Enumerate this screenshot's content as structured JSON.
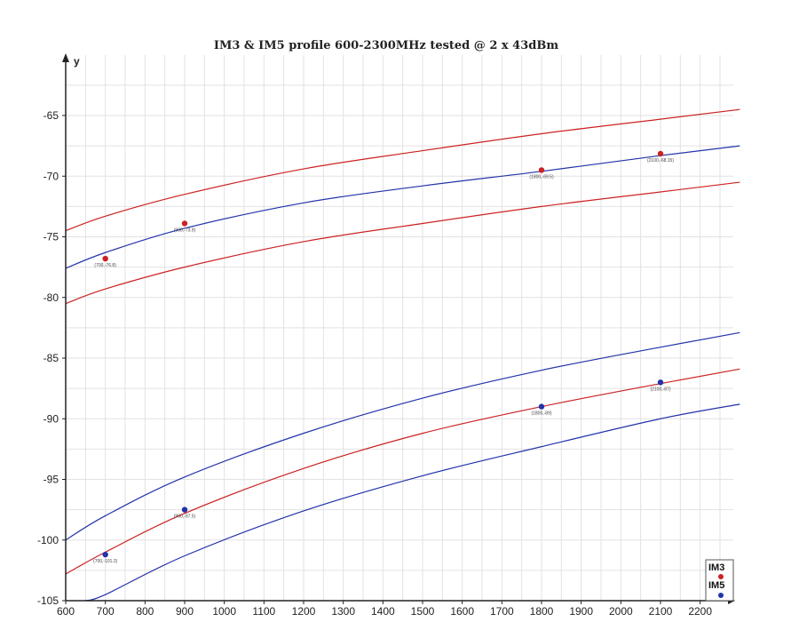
{
  "chart_data": {
    "type": "scatter",
    "title": "IM3 & IM5 profile 600-2300MHz tested @ 2 x 43dBm",
    "ylabel": "y",
    "xlim": [
      600,
      2300
    ],
    "ylim": [
      -105,
      -60
    ],
    "x_ticks": [
      600,
      700,
      800,
      900,
      1000,
      1100,
      1200,
      1300,
      1400,
      1500,
      1600,
      1700,
      1800,
      1900,
      2000,
      2100,
      2200
    ],
    "y_ticks": [
      -65,
      -70,
      -75,
      -80,
      -85,
      -90,
      -95,
      -100,
      -105
    ],
    "grid": true,
    "legend_position": "bottom-right",
    "series": [
      {
        "name": "IM3",
        "color": "#cc2222",
        "points": [
          {
            "x": 700,
            "y": -76.8,
            "label": "(700,-76.8)"
          },
          {
            "x": 900,
            "y": -73.9,
            "label": "(900,-73.9)"
          },
          {
            "x": 1800,
            "y": -69.5,
            "label": "(1800,-69.5)"
          },
          {
            "x": 2100,
            "y": -68.15,
            "label": "(2100,-68.15)"
          }
        ]
      },
      {
        "name": "IM5",
        "color": "#2233aa",
        "points": [
          {
            "x": 700,
            "y": -101.2,
            "label": "(700,-101.2)"
          },
          {
            "x": 900,
            "y": -97.5,
            "label": "(900,-97.5)"
          },
          {
            "x": 1800,
            "y": -89,
            "label": "(1800,-89)"
          },
          {
            "x": 2100,
            "y": -87,
            "label": "(2100,-87)"
          }
        ]
      }
    ],
    "curves": [
      {
        "color": "#cc2222",
        "points": [
          [
            600,
            -74.5
          ],
          [
            700,
            -73.3
          ],
          [
            900,
            -71.5
          ],
          [
            1200,
            -69.4
          ],
          [
            1500,
            -67.9
          ],
          [
            1800,
            -66.5
          ],
          [
            2100,
            -65.3
          ],
          [
            2300,
            -64.5
          ]
        ]
      },
      {
        "color": "#2233aa",
        "points": [
          [
            600,
            -77.6
          ],
          [
            700,
            -76.3
          ],
          [
            900,
            -74.3
          ],
          [
            1200,
            -72.2
          ],
          [
            1500,
            -70.8
          ],
          [
            1800,
            -69.6
          ],
          [
            2100,
            -68.3
          ],
          [
            2300,
            -67.5
          ]
        ]
      },
      {
        "color": "#cc2222",
        "points": [
          [
            600,
            -80.5
          ],
          [
            700,
            -79.3
          ],
          [
            900,
            -77.5
          ],
          [
            1200,
            -75.4
          ],
          [
            1500,
            -73.9
          ],
          [
            1800,
            -72.5
          ],
          [
            2100,
            -71.3
          ],
          [
            2300,
            -70.5
          ]
        ]
      },
      {
        "color": "#2233aa",
        "points": [
          [
            600,
            -100.0
          ],
          [
            700,
            -98.0
          ],
          [
            900,
            -94.8
          ],
          [
            1200,
            -91.2
          ],
          [
            1500,
            -88.3
          ],
          [
            1800,
            -86.0
          ],
          [
            2100,
            -84.1
          ],
          [
            2300,
            -82.9
          ]
        ]
      },
      {
        "color": "#cc2222",
        "points": [
          [
            600,
            -102.8
          ],
          [
            700,
            -101.0
          ],
          [
            900,
            -97.8
          ],
          [
            1200,
            -94.1
          ],
          [
            1500,
            -91.2
          ],
          [
            1800,
            -89.0
          ],
          [
            2100,
            -87.1
          ],
          [
            2300,
            -85.9
          ]
        ]
      },
      {
        "color": "#2233aa",
        "points": [
          [
            650,
            -105.0
          ],
          [
            700,
            -104.5
          ],
          [
            900,
            -101.3
          ],
          [
            1200,
            -97.6
          ],
          [
            1500,
            -94.7
          ],
          [
            1800,
            -92.3
          ],
          [
            2100,
            -90.0
          ],
          [
            2300,
            -88.8
          ]
        ]
      }
    ]
  }
}
